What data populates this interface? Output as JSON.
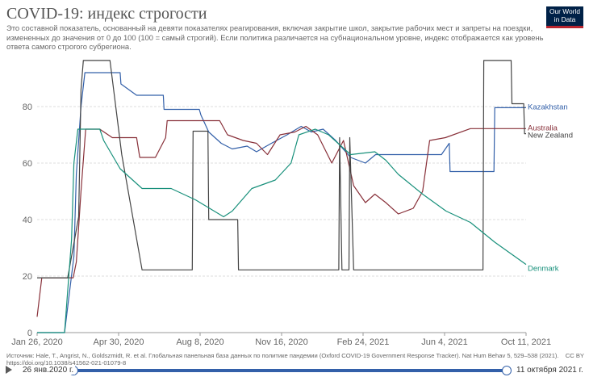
{
  "header": {
    "title": "COVID-19: индекс строгости",
    "subtitle": "Это составной показатель, основанный на девяти показателях реагирования, включая закрытие школ, закрытие рабочих мест и запреты на поездки, измененных до значения от 0 до 100 (100 = самый строгий). Если политика различается на субнациональном уровне, индекс отображается как уровень ответа самого строгого субрегиона."
  },
  "logo": {
    "line1": "Our World",
    "line2": "in Data"
  },
  "footer": {
    "source": "Источник: Hale, T., Angrist, N., Goldszmidt, R. et al. Глобальная панельная база данных по политике пандемии (Oxford COVID-19 Government Response Tracker). Nat Hum Behav 5, 529–538 (2021). https://doi.org/10.1038/s41562-021-01079-8",
    "license": "CC BY"
  },
  "timeline": {
    "start_label": "26 янв.2020 г.",
    "end_label": "11 октября 2021 г."
  },
  "chart_data": {
    "type": "line",
    "title": "COVID-19: индекс строгости",
    "xlabel": "",
    "ylabel": "",
    "x_range": [
      "2020-01-26",
      "2021-10-11"
    ],
    "ylim": [
      0,
      100
    ],
    "yticks": [
      0,
      20,
      40,
      60,
      80
    ],
    "xticks": [
      "Jan 26, 2020",
      "Apr 30, 2020",
      "Aug 8, 2020",
      "Nov 16, 2020",
      "Feb 24, 2021",
      "Jun 4, 2021",
      "Oct 11, 2021"
    ],
    "grid": "horizontal dotted",
    "legend": "right end labels",
    "series": [
      {
        "name": "Kazakhstan",
        "color": "#3360a9",
        "label_value": 79.6,
        "points": [
          [
            "2020-01-26",
            0
          ],
          [
            "2020-03-01",
            0
          ],
          [
            "2020-03-13",
            27
          ],
          [
            "2020-03-16",
            56
          ],
          [
            "2020-03-22",
            80
          ],
          [
            "2020-03-27",
            92
          ],
          [
            "2020-05-11",
            92
          ],
          [
            "2020-05-12",
            88
          ],
          [
            "2020-06-01",
            84
          ],
          [
            "2020-07-05",
            84
          ],
          [
            "2020-07-06",
            79
          ],
          [
            "2020-08-20",
            79
          ],
          [
            "2020-08-22",
            77
          ],
          [
            "2020-09-01",
            71
          ],
          [
            "2020-09-17",
            67
          ],
          [
            "2020-10-01",
            65
          ],
          [
            "2020-10-20",
            66
          ],
          [
            "2020-11-01",
            64
          ],
          [
            "2020-11-20",
            67
          ],
          [
            "2020-12-10",
            70
          ],
          [
            "2020-12-28",
            73
          ],
          [
            "2021-01-10",
            71
          ],
          [
            "2021-01-25",
            72
          ],
          [
            "2021-02-10",
            68
          ],
          [
            "2021-03-01",
            62
          ],
          [
            "2021-03-20",
            60
          ],
          [
            "2021-04-02",
            63
          ],
          [
            "2021-05-20",
            63
          ],
          [
            "2021-06-25",
            63
          ],
          [
            "2021-07-05",
            67
          ],
          [
            "2021-07-06",
            57
          ],
          [
            "2021-08-31",
            57
          ],
          [
            "2021-09-01",
            79.6
          ],
          [
            "2021-10-11",
            79.6
          ]
        ]
      },
      {
        "name": "Australia",
        "color": "#883039",
        "label_value": 72.2,
        "points": [
          [
            "2020-01-26",
            5.6
          ],
          [
            "2020-02-01",
            19.4
          ],
          [
            "2020-03-12",
            19.4
          ],
          [
            "2020-03-16",
            25
          ],
          [
            "2020-03-22",
            50
          ],
          [
            "2020-03-28",
            72
          ],
          [
            "2020-04-15",
            72
          ],
          [
            "2020-05-01",
            69
          ],
          [
            "2020-06-01",
            69
          ],
          [
            "2020-06-05",
            62
          ],
          [
            "2020-06-25",
            62
          ],
          [
            "2020-07-08",
            69
          ],
          [
            "2020-07-10",
            75
          ],
          [
            "2020-09-15",
            75
          ],
          [
            "2020-09-25",
            70
          ],
          [
            "2020-10-15",
            68
          ],
          [
            "2020-11-01",
            67
          ],
          [
            "2020-11-15",
            63
          ],
          [
            "2020-12-01",
            70
          ],
          [
            "2020-12-20",
            71
          ],
          [
            "2021-01-03",
            73
          ],
          [
            "2021-01-18",
            70
          ],
          [
            "2021-02-05",
            60
          ],
          [
            "2021-02-20",
            68
          ],
          [
            "2021-03-05",
            52
          ],
          [
            "2021-03-20",
            46
          ],
          [
            "2021-04-01",
            49
          ],
          [
            "2021-04-15",
            46
          ],
          [
            "2021-05-01",
            42
          ],
          [
            "2021-05-20",
            44
          ],
          [
            "2021-06-01",
            50
          ],
          [
            "2021-06-10",
            68
          ],
          [
            "2021-06-30",
            69
          ],
          [
            "2021-08-01",
            72.2
          ],
          [
            "2021-10-11",
            72.2
          ]
        ]
      },
      {
        "name": "New Zealand",
        "color": "#444444",
        "label_value": 70.4,
        "points": [
          [
            "2020-01-26",
            19.4
          ],
          [
            "2020-03-05",
            19.4
          ],
          [
            "2020-03-19",
            41
          ],
          [
            "2020-03-22",
            86
          ],
          [
            "2020-03-25",
            96.3
          ],
          [
            "2020-04-28",
            96.3
          ],
          [
            "2020-05-13",
            63
          ],
          [
            "2020-06-08",
            22.2
          ],
          [
            "2020-08-11",
            22.2
          ],
          [
            "2020-08-12",
            71.3
          ],
          [
            "2020-08-31",
            71.3
          ],
          [
            "2020-09-01",
            40
          ],
          [
            "2020-10-08",
            40
          ],
          [
            "2020-10-09",
            22.2
          ],
          [
            "2021-02-14",
            22.2
          ],
          [
            "2021-02-15",
            69
          ],
          [
            "2021-02-18",
            22.2
          ],
          [
            "2021-02-27",
            22.2
          ],
          [
            "2021-02-28",
            69
          ],
          [
            "2021-03-05",
            22.2
          ],
          [
            "2021-08-17",
            22.2
          ],
          [
            "2021-08-18",
            96.3
          ],
          [
            "2021-09-22",
            96.3
          ],
          [
            "2021-09-23",
            81
          ],
          [
            "2021-10-08",
            81
          ],
          [
            "2021-10-09",
            70.4
          ],
          [
            "2021-10-11",
            70.4
          ]
        ]
      },
      {
        "name": "Denmark",
        "color": "#18907b",
        "label_value": 24.1,
        "points": [
          [
            "2020-01-26",
            0
          ],
          [
            "2020-03-01",
            0
          ],
          [
            "2020-03-04",
            11
          ],
          [
            "2020-03-10",
            33
          ],
          [
            "2020-03-13",
            60
          ],
          [
            "2020-03-18",
            72
          ],
          [
            "2020-04-15",
            72
          ],
          [
            "2020-04-20",
            68
          ],
          [
            "2020-05-11",
            58
          ],
          [
            "2020-06-08",
            51
          ],
          [
            "2020-07-15",
            51
          ],
          [
            "2020-08-15",
            47
          ],
          [
            "2020-09-20",
            41
          ],
          [
            "2020-10-01",
            43
          ],
          [
            "2020-10-26",
            51
          ],
          [
            "2020-11-25",
            54
          ],
          [
            "2020-12-15",
            60
          ],
          [
            "2020-12-25",
            70
          ],
          [
            "2021-01-15",
            72
          ],
          [
            "2021-02-01",
            70
          ],
          [
            "2021-03-01",
            63
          ],
          [
            "2021-04-01",
            64
          ],
          [
            "2021-04-15",
            61
          ],
          [
            "2021-05-01",
            56
          ],
          [
            "2021-06-01",
            49
          ],
          [
            "2021-07-01",
            43
          ],
          [
            "2021-08-01",
            39
          ],
          [
            "2021-09-01",
            32
          ],
          [
            "2021-10-11",
            24.1
          ]
        ]
      }
    ]
  }
}
